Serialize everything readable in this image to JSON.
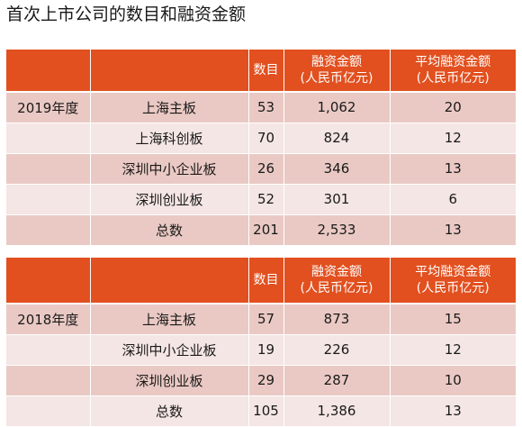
{
  "title": "首次上市公司的数目和融资金额",
  "headers": {
    "count": "数目",
    "amount_line1": "融资金额",
    "amount_line2": "(人民币亿元)",
    "avg_line1": "平均融资金额",
    "avg_line2": "(人民币亿元)"
  },
  "tables": [
    {
      "year": "2019年度",
      "rows": [
        {
          "board": "上海主板",
          "count": "53",
          "amount": "1,062",
          "avg": "20"
        },
        {
          "board": "上海科创板",
          "count": "70",
          "amount": "824",
          "avg": "12"
        },
        {
          "board": "深圳中小企业板",
          "count": "26",
          "amount": "346",
          "avg": "13"
        },
        {
          "board": "深圳创业板",
          "count": "52",
          "amount": "301",
          "avg": "6"
        },
        {
          "board": "总数",
          "count": "201",
          "amount": "2,533",
          "avg": "13"
        }
      ]
    },
    {
      "year": "2018年度",
      "rows": [
        {
          "board": "上海主板",
          "count": "57",
          "amount": "873",
          "avg": "15"
        },
        {
          "board": "深圳中小企业板",
          "count": "19",
          "amount": "226",
          "avg": "12"
        },
        {
          "board": "深圳创业板",
          "count": "29",
          "amount": "287",
          "avg": "10"
        },
        {
          "board": "总数",
          "count": "105",
          "amount": "1,386",
          "avg": "13"
        }
      ]
    }
  ]
}
